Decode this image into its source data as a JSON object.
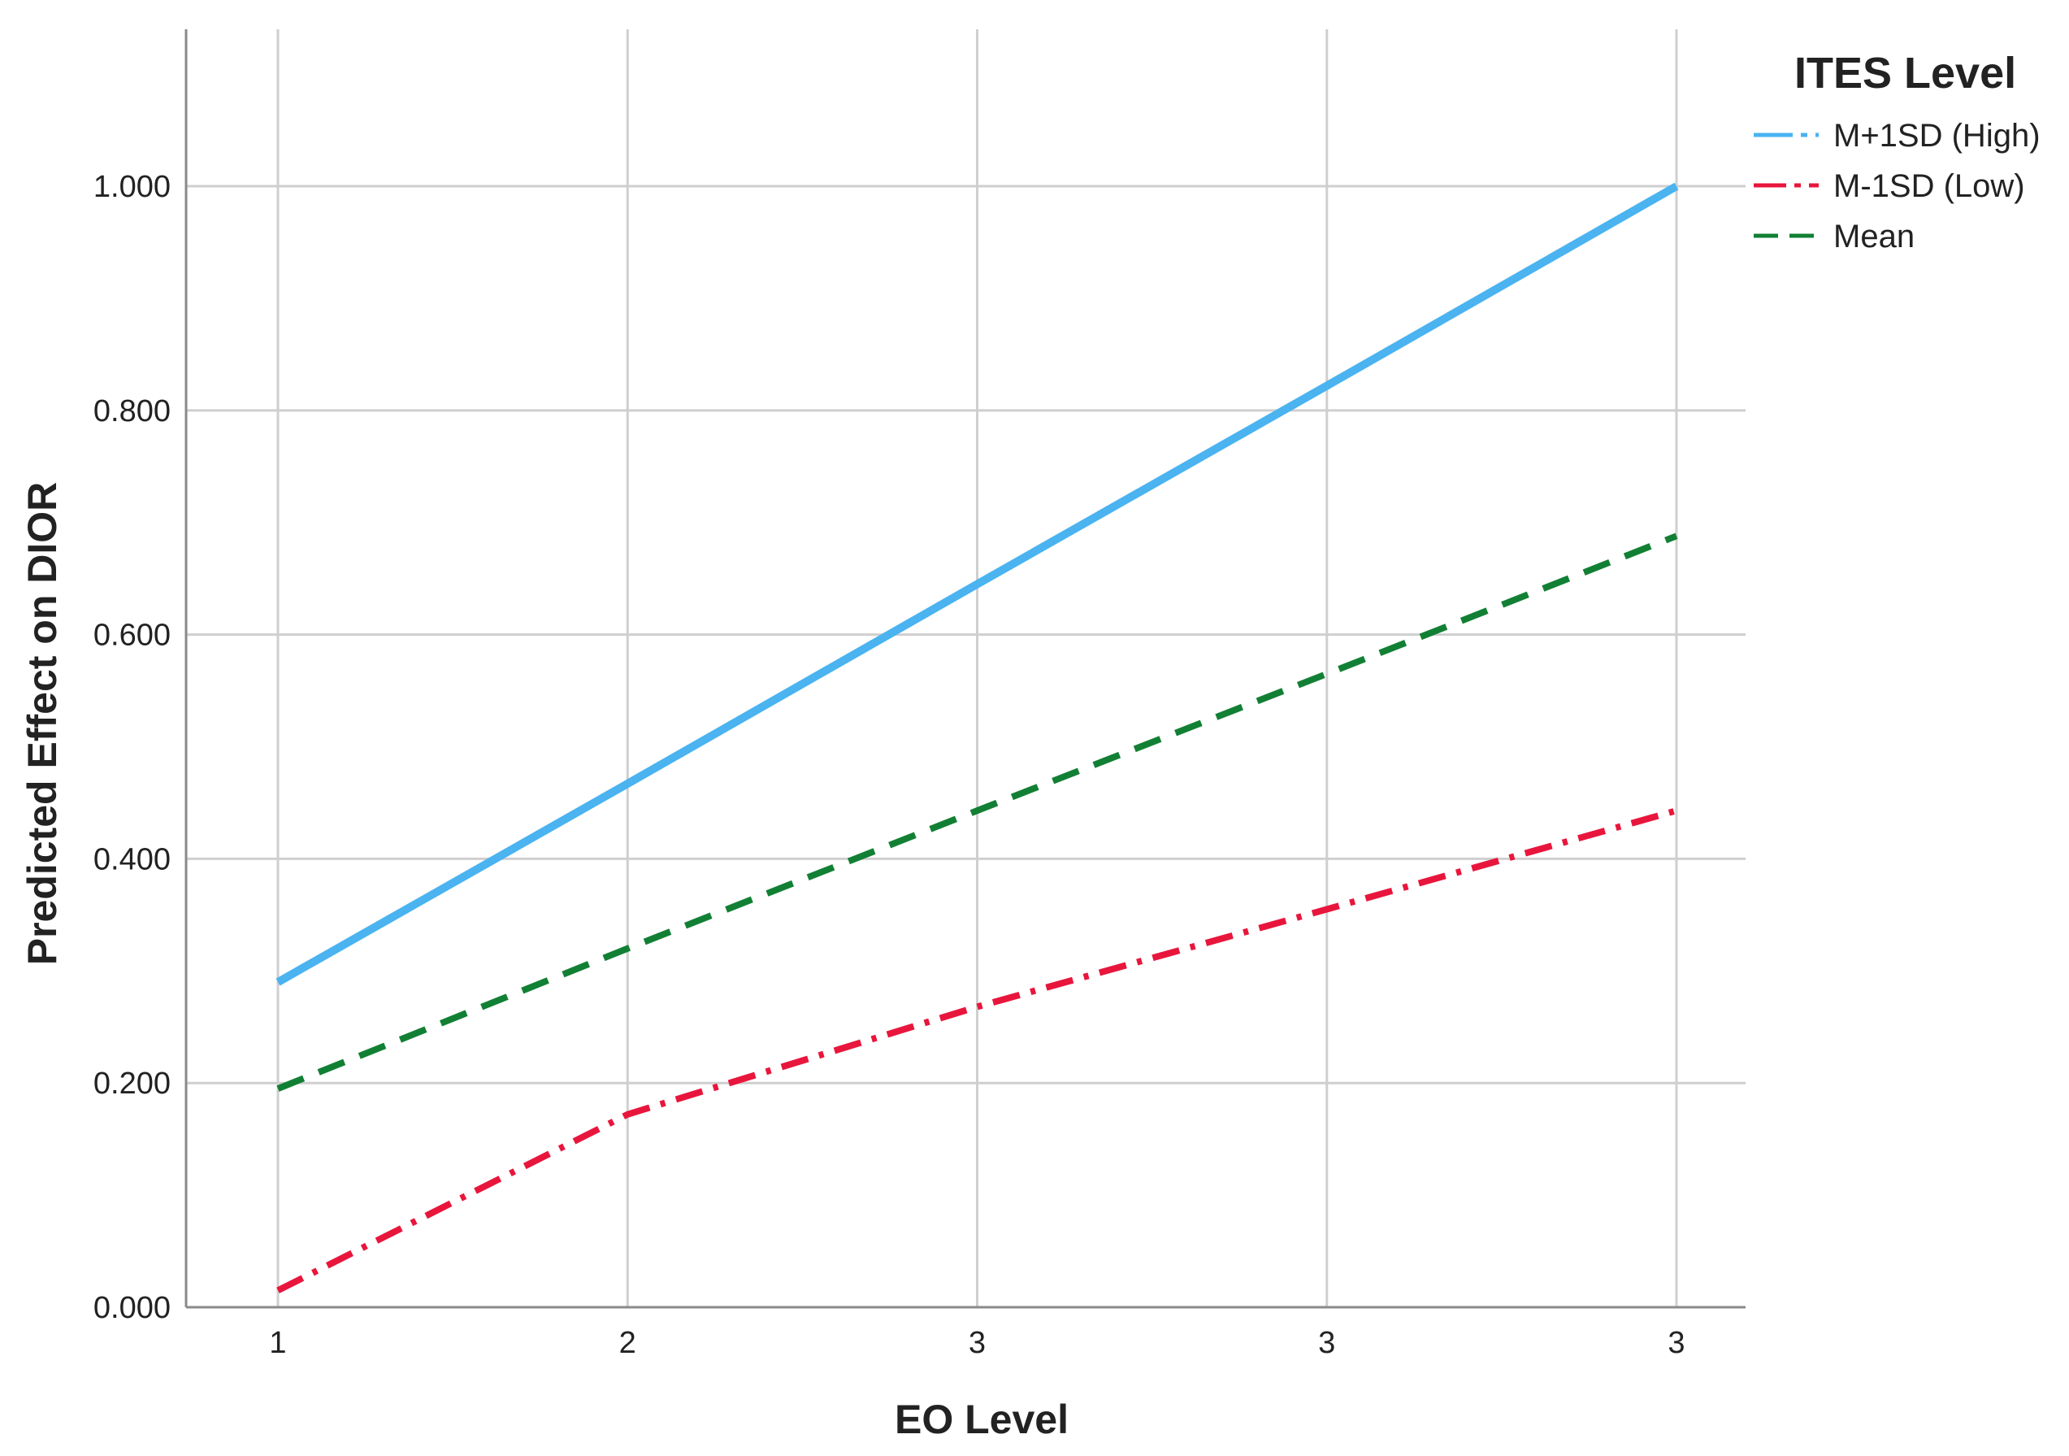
{
  "chart_data": {
    "type": "line",
    "title": "",
    "xlabel": "EO Level",
    "ylabel": "Predicted Effect on DIOR",
    "x_tick_labels": [
      "1",
      "2",
      "3",
      "3",
      "3"
    ],
    "y_tick_labels": [
      "0.000",
      "0.200",
      "0.400",
      "0.600",
      "0.800",
      "1.000"
    ],
    "ylim": [
      0,
      1.14
    ],
    "grid": true,
    "legend": {
      "title": "ITES Level",
      "position": "top-right"
    },
    "series": [
      {
        "name": "M+1SD (High)",
        "color": "#4ab3f0",
        "dash": "solid",
        "values": [
          0.29,
          0.467,
          0.645,
          0.822,
          1.0
        ]
      },
      {
        "name": "M-1SD (Low)",
        "color": "#e8163c",
        "dash": "dash-dot",
        "values": [
          0.015,
          0.172,
          0.268,
          0.355,
          0.443
        ]
      },
      {
        "name": "Mean",
        "color": "#128034",
        "dash": "dashed",
        "values": [
          0.195,
          0.32,
          0.443,
          0.565,
          0.688
        ]
      }
    ]
  }
}
